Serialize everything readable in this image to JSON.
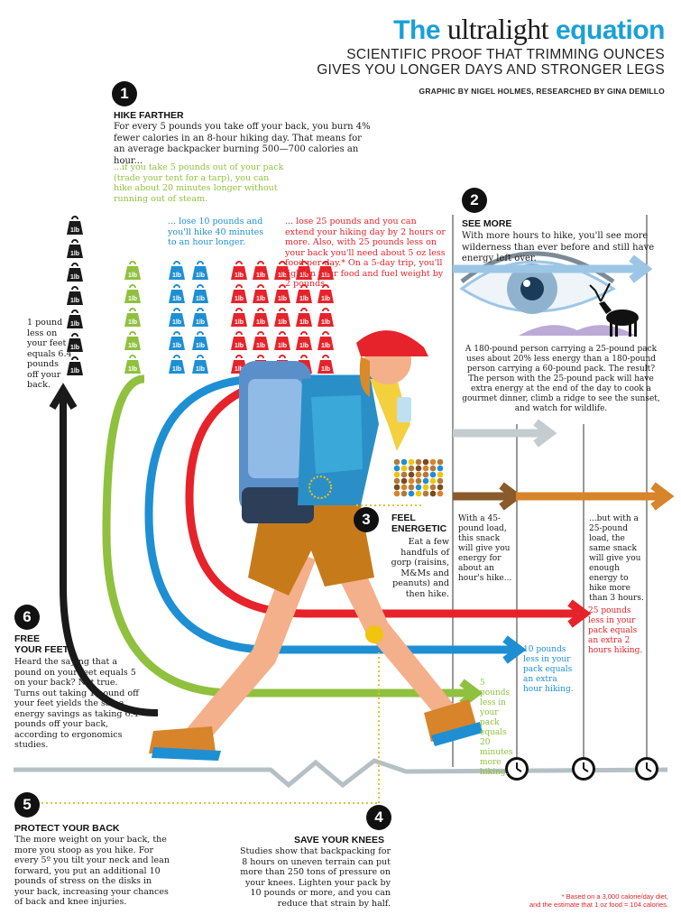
{
  "header": {
    "title_the": "The ",
    "title_ultralight": "ultralight",
    "title_equation": " equation",
    "subtitle_line1": "SCIENTIFIC PROOF THAT TRIMMING OUNCES",
    "subtitle_line2": "GIVES YOU LONGER DAYS AND STRONGER LEGS",
    "credit": "GRAPHIC BY NIGEL HOLMES, RESEARCHED BY GINA DEMILLO"
  },
  "weight_label": "1lb",
  "sections": {
    "s1": {
      "number": "1",
      "heading": "HIKE FARTHER",
      "body": "For every 5 pounds  you take off your back, you burn 4% fewer calories in an 8-hour hiking day. That means for an average backpacker burning 500—700 calories an hour...",
      "green": "...if you take 5 pounds out of your pack (trade your tent for a tarp), you can hike about 20 minutes longer without running out of steam.",
      "blue": "... lose 10 pounds and you'll hike 40 minutes to an hour longer.",
      "red": "... lose 25 pounds and you can extend your hiking day by 2 hours or more. Also, with 25 pounds less on your back you'll need about 5 oz less food per day.* On a 5-day trip, you'll lighten your food and fuel weight by 2 pounds."
    },
    "s2": {
      "number": "2",
      "heading": "SEE MORE",
      "body": "With more hours to hike, you'll see more wilderness than ever before and still have energy left over.",
      "detail": "A 180-pound person carrying a 25-pound pack uses about 20% less energy than a 180-pound person carrying a 60-pound pack. The result? The person with the 25-pound pack will have extra energy at the end of the day to cook a gourmet dinner, climb a ridge to see the sunset, and watch for wildlife."
    },
    "s3": {
      "number": "3",
      "heading_1": "FEEL",
      "heading_2": "ENERGETIC",
      "body": "Eat a few handfuls of gorp (raisins, M&Ms and peanuts) and then hike.",
      "note_45": "With a 45-pound load, this snack will give you energy for about an hour's hike...",
      "note_25": "...but with a 25-pound load, the same snack will give you enough energy to hike more than 3 hours."
    },
    "s4": {
      "number": "4",
      "heading": "SAVE YOUR KNEES",
      "body": "Studies show that backpacking for 8 hours on uneven terrain can put more than 250 tons of pressure on your knees. Lighten your pack by 10 pounds or more, and you can reduce that strain by half."
    },
    "s5": {
      "number": "5",
      "heading": "PROTECT YOUR BACK",
      "body": "The more weight on your back, the more you stoop as you hike. For every 5º you tilt your neck and lean forward, you put an additional 10 pounds of stress on the disks in your back, increasing your chances of back and knee injuries."
    },
    "s6": {
      "number": "6",
      "heading_1": "FREE",
      "heading_2": "YOUR FEET",
      "body": "Heard the saying that a pound on your feet equals 5 on your back? Not true. Turns out taking 1 pound off your feet yields the same energy savings as taking 6.4 pounds off your back, according to ergonomics studies."
    }
  },
  "side_note": "1 pound less on your feet equals 6.4 pounds off your back.",
  "outcomes": {
    "green": "5 pounds less in your pack equals 20 minutes more hiking.",
    "blue": "10 pounds less in your pack equals an extra hour hiking.",
    "red": "25 pounds less in your pack equals an extra 2 hours hiking."
  },
  "footnote_1": "* Based on a 3,000 calorie/day diet,",
  "footnote_2": "and the estimate that  1 oz food = 104 calories.",
  "colors": {
    "green": "#8fc13e",
    "blue": "#1e8fd3",
    "red": "#e6232a",
    "black": "#1a1a1a",
    "brown": "#8a5a2b",
    "orange": "#d7842a",
    "lightblue": "#9cc6e6",
    "gray": "#b4c0c4"
  },
  "icons": [
    "weight-icon",
    "eye-icon",
    "elk-icon",
    "clock-icon",
    "hiker-illustration",
    "gorp-icon"
  ]
}
